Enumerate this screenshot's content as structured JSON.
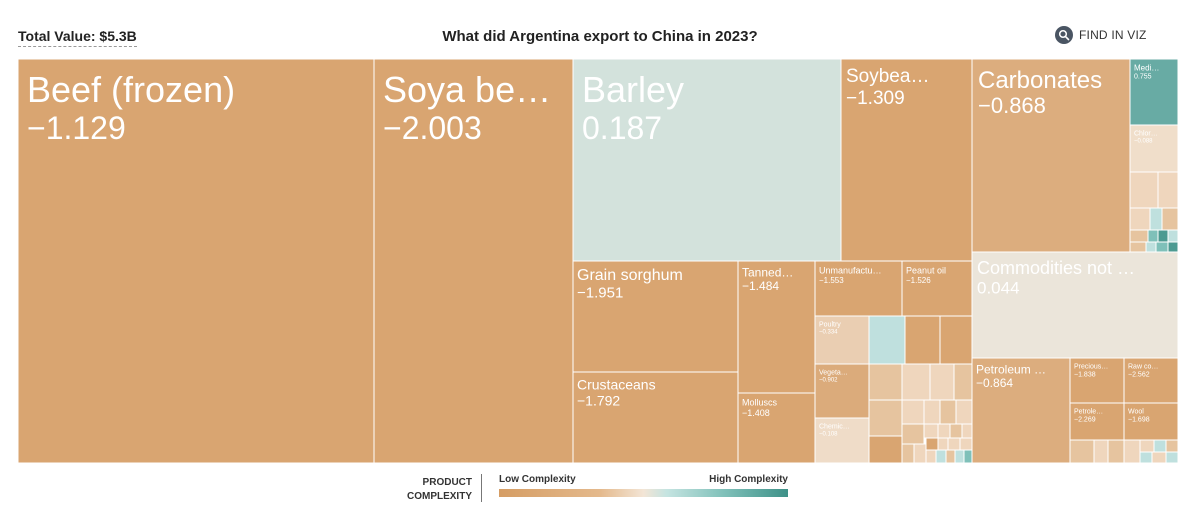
{
  "header": {
    "total_value": "Total Value: $5.3B",
    "title": "What did Argentina export to China in 2023?",
    "find_in_viz_label": "FIND IN VIZ",
    "find_in_viz_icon": "search-icon"
  },
  "legend": {
    "title_line1": "PRODUCT",
    "title_line2": "COMPLEXITY",
    "low_label": "Low Complexity",
    "high_label": "High Complexity"
  },
  "colors": {
    "low_complexity": "#d59d64",
    "mid_complexity": "#f3e5d6",
    "high_complexity": "#3e9188",
    "teal_light": "#bfe0de"
  },
  "chart_data": {
    "type": "treemap",
    "title": "What did Argentina export to China in 2023?",
    "total": "$5.3B",
    "color_metric": "product complexity",
    "labeled_items": [
      {
        "name": "Beef (frozen)",
        "complexity": -1.129
      },
      {
        "name": "Soya be…",
        "complexity": -2.003
      },
      {
        "name": "Barley",
        "complexity": 0.187
      },
      {
        "name": "Soybea…",
        "complexity": -1.309
      },
      {
        "name": "Carbonates",
        "complexity": -0.868
      },
      {
        "name": "Medi…",
        "complexity": 0.755
      },
      {
        "name": "Chlor…",
        "complexity": -0.088
      },
      {
        "name": "Grain sorghum",
        "complexity": -1.951
      },
      {
        "name": "Tanned…",
        "complexity": -1.484
      },
      {
        "name": "Unmanufactu…",
        "complexity": -1.553
      },
      {
        "name": "Peanut oil",
        "complexity": -1.526
      },
      {
        "name": "Commodities not …",
        "complexity": 0.044
      },
      {
        "name": "Poultry",
        "complexity": -0.334
      },
      {
        "name": "Vegeta…",
        "complexity": -0.902
      },
      {
        "name": "Chemic…",
        "complexity": -0.108
      },
      {
        "name": "Crustaceans",
        "complexity": -1.792
      },
      {
        "name": "Molluscs",
        "complexity": -1.408
      },
      {
        "name": "Petroleum …",
        "complexity": -0.864
      },
      {
        "name": "Precious…",
        "complexity": -1.838
      },
      {
        "name": "Raw co…",
        "complexity": -2.562
      },
      {
        "name": "Petrole…",
        "complexity": -2.269
      },
      {
        "name": "Wool",
        "complexity": -1.698
      }
    ]
  }
}
